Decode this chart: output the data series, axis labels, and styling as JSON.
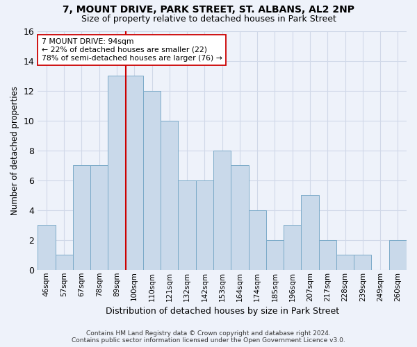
{
  "title": "7, MOUNT DRIVE, PARK STREET, ST. ALBANS, AL2 2NP",
  "subtitle": "Size of property relative to detached houses in Park Street",
  "xlabel": "Distribution of detached houses by size in Park Street",
  "ylabel": "Number of detached properties",
  "categories": [
    "46sqm",
    "57sqm",
    "67sqm",
    "78sqm",
    "89sqm",
    "100sqm",
    "110sqm",
    "121sqm",
    "132sqm",
    "142sqm",
    "153sqm",
    "164sqm",
    "174sqm",
    "185sqm",
    "196sqm",
    "207sqm",
    "217sqm",
    "228sqm",
    "239sqm",
    "249sqm",
    "260sqm"
  ],
  "values": [
    3,
    1,
    7,
    7,
    13,
    13,
    12,
    10,
    6,
    6,
    8,
    7,
    4,
    2,
    3,
    5,
    2,
    1,
    1,
    0,
    2
  ],
  "bar_color": "#c9d9ea",
  "bar_edge_color": "#7aaac8",
  "grid_color": "#d0d8e8",
  "background_color": "#eef2fa",
  "marker_index": 4,
  "marker_color": "#cc0000",
  "annotation_text": "7 MOUNT DRIVE: 94sqm\n← 22% of detached houses are smaller (22)\n78% of semi-detached houses are larger (76) →",
  "annotation_box_color": "#ffffff",
  "annotation_box_edge": "#cc0000",
  "footer_text": "Contains HM Land Registry data © Crown copyright and database right 2024.\nContains public sector information licensed under the Open Government Licence v3.0.",
  "ylim": [
    0,
    16
  ],
  "yticks": [
    0,
    2,
    4,
    6,
    8,
    10,
    12,
    14,
    16
  ],
  "title_fontsize": 10,
  "subtitle_fontsize": 9
}
